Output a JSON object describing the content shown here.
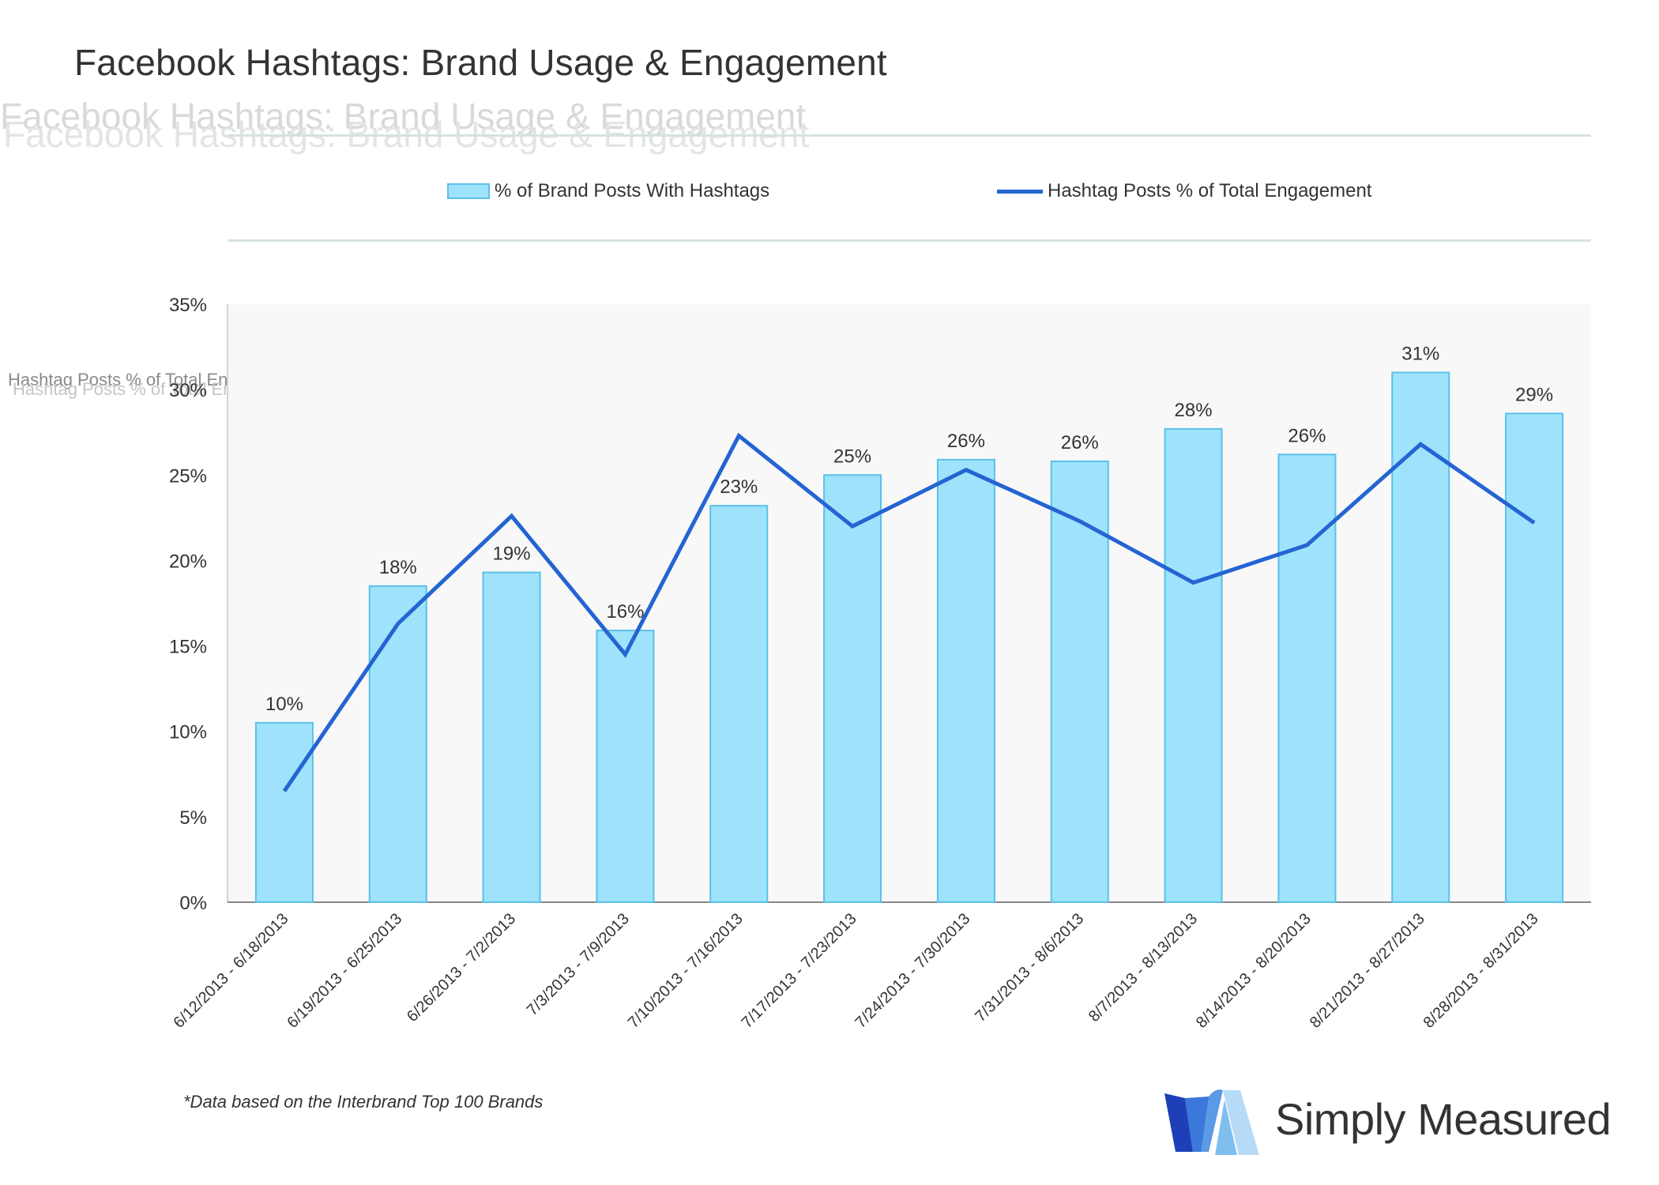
{
  "title": "Facebook Hashtags: Brand Usage & Engagement",
  "ghost_title": "Facebook Hashtags: Brand Usage & Engagement",
  "ghost_legend": "Hashtag Posts % of Total Engagement % of Brand Posts With Hashtags",
  "footnote": "*Data based on the Interbrand Top 100 Brands",
  "logo_text": "Simply Measured",
  "colors": {
    "bar_fill": "#9ee3fb",
    "bar_stroke": "#5bc0e8",
    "line": "#2464d3",
    "plot_bg": "#f8f8f8",
    "axis": "#888888"
  },
  "chart_data": {
    "type": "bar",
    "title": "Facebook Hashtags: Brand Usage & Engagement",
    "categories": [
      "6/12/2013 - 6/18/2013",
      "6/19/2013 - 6/25/2013",
      "6/26/2013 - 7/2/2013",
      "7/3/2013 - 7/9/2013",
      "7/10/2013 - 7/16/2013",
      "7/17/2013 - 7/23/2013",
      "7/24/2013 - 7/30/2013",
      "7/31/2013 - 8/6/2013",
      "8/7/2013 - 8/13/2013",
      "8/14/2013 - 8/20/2013",
      "8/21/2013 - 8/27/2013",
      "8/28/2013 - 8/31/2013"
    ],
    "series": [
      {
        "name": "% of Brand Posts With Hashtags",
        "type": "bar",
        "values": [
          10.5,
          18.5,
          19.3,
          15.9,
          23.2,
          25.0,
          25.9,
          25.8,
          27.7,
          26.2,
          31.0,
          28.6
        ],
        "labels": [
          "10%",
          "18%",
          "19%",
          "16%",
          "23%",
          "25%",
          "26%",
          "26%",
          "28%",
          "26%",
          "31%",
          "29%"
        ]
      },
      {
        "name": "Hashtag Posts % of Total Engagement",
        "type": "line",
        "values": [
          6.5,
          16.3,
          22.6,
          14.5,
          27.3,
          22.0,
          25.3,
          22.3,
          18.7,
          20.9,
          26.8,
          22.2
        ]
      }
    ],
    "ylim": [
      0,
      35
    ],
    "yticks": [
      "0%",
      "5%",
      "10%",
      "15%",
      "20%",
      "25%",
      "30%",
      "35%"
    ],
    "legend": "top",
    "grid": false
  }
}
